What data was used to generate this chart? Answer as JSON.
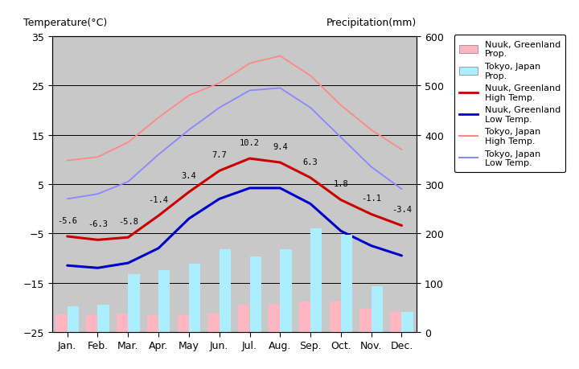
{
  "months": [
    "Jan.",
    "Feb.",
    "Mar.",
    "Apr.",
    "May",
    "Jun.",
    "Jul.",
    "Aug.",
    "Sep.",
    "Oct.",
    "Nov.",
    "Dec."
  ],
  "nuuk_high": [
    -5.6,
    -6.3,
    -5.8,
    -1.4,
    3.4,
    7.7,
    10.2,
    9.4,
    6.3,
    1.8,
    -1.1,
    -3.4
  ],
  "nuuk_low": [
    -11.5,
    -12.0,
    -11.0,
    -8.0,
    -2.0,
    2.0,
    4.2,
    4.2,
    1.0,
    -4.5,
    -7.5,
    -9.5
  ],
  "tokyo_high": [
    9.8,
    10.5,
    13.5,
    18.5,
    23.0,
    25.5,
    29.5,
    31.0,
    27.0,
    21.0,
    16.0,
    12.0
  ],
  "tokyo_low": [
    2.0,
    3.0,
    5.5,
    11.0,
    16.0,
    20.5,
    24.0,
    24.5,
    20.5,
    14.5,
    8.5,
    4.0
  ],
  "nuuk_precip": [
    36,
    35,
    38,
    34,
    35,
    38,
    55,
    57,
    62,
    62,
    47,
    40
  ],
  "tokyo_precip": [
    52,
    56,
    117,
    125,
    138,
    168,
    154,
    168,
    210,
    198,
    93,
    40
  ],
  "nuuk_high_color": "#CC0000",
  "nuuk_low_color": "#0000CC",
  "tokyo_high_color": "#FF8888",
  "tokyo_low_color": "#8888FF",
  "nuuk_precip_color": "#FFB6C1",
  "tokyo_precip_color": "#AAEEFF",
  "bg_color": "#C8C8C8",
  "title_left": "Temperature(°C)",
  "title_right": "Precipitation(mm)",
  "ylim_temp": [
    -25,
    35
  ],
  "ylim_precip": [
    0,
    600
  ],
  "temp_ticks": [
    -25,
    -15,
    -5,
    5,
    15,
    25,
    35
  ],
  "precip_ticks": [
    0,
    100,
    200,
    300,
    400,
    500,
    600
  ],
  "legend_labels": [
    "Nuuk, Greenland\nProp.",
    "Tokyo, Japan\nProp.",
    "Nuuk, Greenland\nHigh Temp.",
    "Nuuk, Greenland\nLow Temp.",
    "Tokyo, Japan\nHigh Temp.",
    "Tokyo, Japan\nLow Temp."
  ],
  "nuuk_high_annot": [
    -5.6,
    -6.3,
    -5.8,
    -1.4,
    3.4,
    7.7,
    10.2,
    9.4,
    6.3,
    1.8,
    -1.1,
    -3.4
  ],
  "annot_offset": [
    2.5,
    2.5,
    2.5,
    2.5,
    2.5,
    2.5,
    2.5,
    2.5,
    2.5,
    2.5,
    2.5,
    2.5
  ]
}
